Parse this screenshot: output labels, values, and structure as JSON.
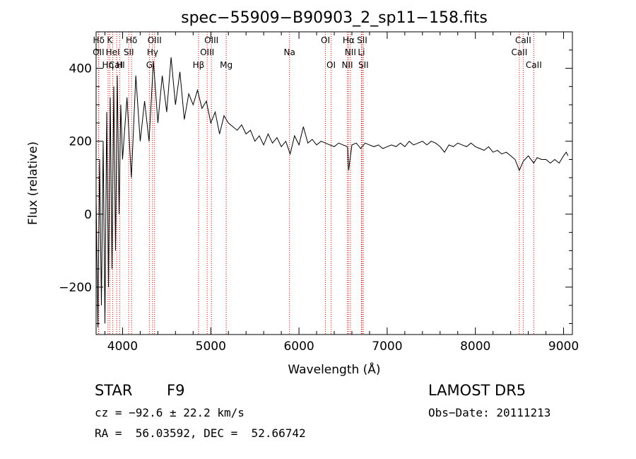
{
  "chart_data": {
    "type": "line",
    "title": "spec−55909−B90903_2_sp11−158.fits",
    "xlabel": "Wavelength (Å)",
    "ylabel": "Flux (relative)",
    "xlim": [
      3700,
      9100
    ],
    "ylim": [
      -330,
      500
    ],
    "x_ticks": [
      4000,
      5000,
      6000,
      7000,
      8000,
      9000
    ],
    "y_ticks": [
      -200,
      0,
      200,
      400
    ],
    "y_tick_labels": [
      "−200",
      "0",
      "200",
      "400"
    ],
    "series_color": "#000000",
    "line_marker_color": "#cc0000",
    "series": [
      {
        "x": [
          3700,
          3720,
          3740,
          3760,
          3780,
          3800,
          3820,
          3840,
          3860,
          3880,
          3900,
          3920,
          3940,
          3960,
          3980,
          4000,
          4050,
          4100,
          4150,
          4200,
          4250,
          4300,
          4350,
          4400,
          4450,
          4500,
          4550,
          4600,
          4650,
          4700,
          4750,
          4800,
          4850,
          4900,
          4950,
          5000,
          5050,
          5100,
          5150,
          5200,
          5250,
          5300,
          5350,
          5400,
          5450,
          5500,
          5550,
          5600,
          5650,
          5700,
          5750,
          5800,
          5850,
          5900,
          5950,
          6000,
          6050,
          6100,
          6150,
          6200,
          6250,
          6300,
          6350,
          6400,
          6450,
          6500,
          6550,
          6563,
          6600,
          6650,
          6700,
          6750,
          6800,
          6850,
          6900,
          6950,
          7000,
          7050,
          7100,
          7150,
          7200,
          7250,
          7300,
          7350,
          7400,
          7450,
          7500,
          7550,
          7600,
          7650,
          7700,
          7750,
          7800,
          7850,
          7900,
          7950,
          8000,
          8050,
          8100,
          8150,
          8200,
          8250,
          8300,
          8350,
          8400,
          8450,
          8498,
          8542,
          8600,
          8662,
          8700,
          8750,
          8800,
          8850,
          8900,
          8950,
          9000,
          9030,
          9050
        ],
        "y": [
          50,
          -310,
          150,
          -250,
          200,
          -300,
          280,
          -200,
          320,
          -150,
          350,
          -100,
          380,
          0,
          300,
          150,
          320,
          100,
          380,
          200,
          310,
          200,
          420,
          250,
          380,
          280,
          430,
          300,
          390,
          260,
          330,
          300,
          340,
          290,
          310,
          250,
          280,
          220,
          270,
          250,
          240,
          230,
          245,
          220,
          230,
          200,
          215,
          190,
          220,
          195,
          210,
          185,
          200,
          165,
          215,
          190,
          240,
          195,
          205,
          190,
          200,
          195,
          190,
          185,
          195,
          190,
          185,
          120,
          190,
          195,
          180,
          195,
          190,
          185,
          190,
          180,
          185,
          190,
          185,
          195,
          185,
          200,
          190,
          195,
          200,
          190,
          200,
          195,
          185,
          170,
          190,
          185,
          195,
          190,
          185,
          195,
          185,
          180,
          175,
          185,
          170,
          175,
          165,
          170,
          160,
          150,
          120,
          145,
          160,
          140,
          155,
          150,
          150,
          140,
          150,
          140,
          160,
          170,
          160
        ]
      }
    ],
    "spectral_lines": [
      {
        "label": "Hδ",
        "wavelength": 3730,
        "row": 0
      },
      {
        "label": "K",
        "wavelength": 3855,
        "row": 0
      },
      {
        "label": "Hδ",
        "wavelength": 4102,
        "row": 0
      },
      {
        "label": "OIII",
        "wavelength": 4363,
        "row": 0
      },
      {
        "label": "OIII",
        "wavelength": 5007,
        "row": 0
      },
      {
        "label": "OI",
        "wavelength": 6300,
        "row": 0
      },
      {
        "label": "Hα",
        "wavelength": 6563,
        "row": 0
      },
      {
        "label": "SII",
        "wavelength": 6716,
        "row": 0
      },
      {
        "label": "CaII",
        "wavelength": 8542,
        "row": 0
      },
      {
        "label": "OII",
        "wavelength": 3727,
        "row": 1
      },
      {
        "label": "HeI",
        "wavelength": 3889,
        "row": 1
      },
      {
        "label": "SII",
        "wavelength": 4070,
        "row": 1
      },
      {
        "label": "Hγ",
        "wavelength": 4340,
        "row": 1
      },
      {
        "label": "OIII",
        "wavelength": 4959,
        "row": 1
      },
      {
        "label": "Na",
        "wavelength": 5893,
        "row": 1
      },
      {
        "label": "NII",
        "wavelength": 6583,
        "row": 1
      },
      {
        "label": "Li",
        "wavelength": 6708,
        "row": 1
      },
      {
        "label": "CaII",
        "wavelength": 8498,
        "row": 1
      },
      {
        "label": "CaII",
        "wavelength": 3934,
        "row": 2
      },
      {
        "label": "Hη",
        "wavelength": 3835,
        "row": 2
      },
      {
        "label": "H",
        "wavelength": 3969,
        "row": 2
      },
      {
        "label": "G",
        "wavelength": 4304,
        "row": 2
      },
      {
        "label": "Hβ",
        "wavelength": 4861,
        "row": 2
      },
      {
        "label": "Mg",
        "wavelength": 5175,
        "row": 2
      },
      {
        "label": "OI",
        "wavelength": 6364,
        "row": 2
      },
      {
        "label": "NII",
        "wavelength": 6548,
        "row": 2
      },
      {
        "label": "SII",
        "wavelength": 6731,
        "row": 2
      },
      {
        "label": "CaII",
        "wavelength": 8662,
        "row": 2
      }
    ]
  },
  "info": {
    "object_class": "STAR",
    "subclass": "F9",
    "survey": "LAMOST DR5",
    "cz": "cz = −92.6 ± 22.2 km/s",
    "obs_date": "Obs−Date: 20111213",
    "coords": "RA =  56.03592, DEC =  52.66742"
  }
}
